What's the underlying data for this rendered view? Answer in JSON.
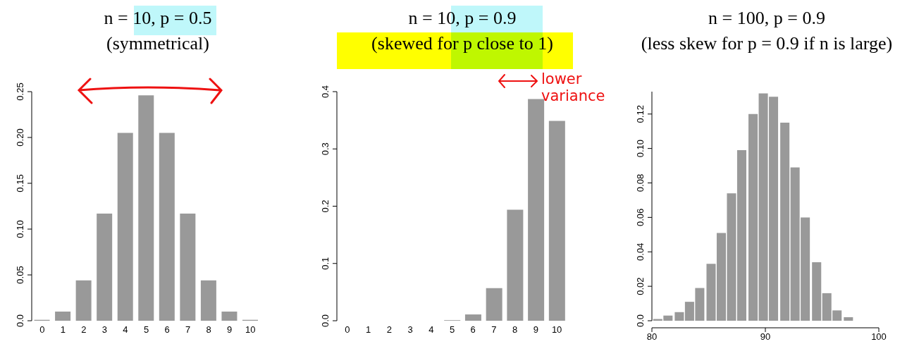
{
  "chart_data": [
    {
      "type": "bar",
      "title": "n = 10, p = 0.5",
      "subtitle": "(symmetrical)",
      "categories": [
        "0",
        "1",
        "2",
        "3",
        "4",
        "5",
        "6",
        "7",
        "8",
        "9",
        "10"
      ],
      "values": [
        0.001,
        0.01,
        0.044,
        0.117,
        0.205,
        0.246,
        0.205,
        0.117,
        0.044,
        0.01,
        0.001
      ],
      "color": "#999999",
      "ylim": [
        0,
        0.25
      ],
      "yticks": [
        {
          "value": 0,
          "label": "0.0"
        },
        0.05,
        {
          "value": 0.1,
          "label": "0.10"
        },
        0.15,
        {
          "value": 0.2,
          "label": "0.20"
        },
        0.25
      ]
    },
    {
      "type": "bar",
      "title": "n = 10, p = 0.9",
      "subtitle": "(skewed for p close to 1)",
      "categories": [
        "0",
        "1",
        "2",
        "3",
        "4",
        "5",
        "6",
        "7",
        "8",
        "9",
        "10"
      ],
      "values": [
        0,
        0,
        0,
        0,
        0,
        0.001,
        0.011,
        0.057,
        0.194,
        0.387,
        0.349
      ],
      "color": "#999999",
      "ylim": [
        0,
        0.4
      ],
      "yticks": [
        {
          "value": 0,
          "label": "0.0"
        },
        0.1,
        0.2,
        0.3,
        0.4
      ],
      "annotations": [
        "lower variance"
      ]
    },
    {
      "type": "bar",
      "title": "n = 100, p = 0.9",
      "subtitle": "(less skew for p = 0.9 if n is large)",
      "x": [
        80.5,
        81.4,
        82.4,
        83.3,
        84.2,
        85.2,
        86.1,
        87.0,
        87.9,
        88.9,
        89.8,
        90.7,
        91.7,
        92.6,
        93.5,
        94.5,
        95.4,
        96.3,
        97.3,
        98.2,
        99.1
      ],
      "values": [
        0.001,
        0.003,
        0.005,
        0.011,
        0.019,
        0.033,
        0.051,
        0.074,
        0.099,
        0.12,
        0.132,
        0.13,
        0.115,
        0.089,
        0.06,
        0.034,
        0.016,
        0.006,
        0.002,
        0,
        0
      ],
      "color": "#999999",
      "xlim": [
        80,
        100
      ],
      "xticks": [
        80,
        90,
        100
      ],
      "ylim": [
        0,
        0.133
      ],
      "yticks": [
        {
          "value": 0,
          "label": "0.0"
        },
        0.02,
        0.04,
        0.06,
        0.08,
        {
          "value": 0.1,
          "label": "0.10"
        },
        0.12
      ]
    }
  ]
}
